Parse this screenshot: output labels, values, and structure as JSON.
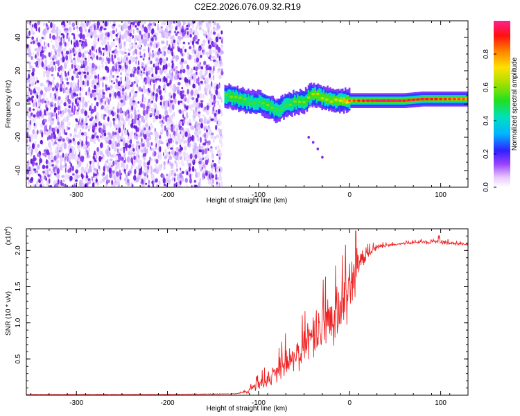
{
  "title": "C2E2.2026.076.09.32.R19",
  "colors": {
    "snr_line": "#ee2222",
    "spectrogram_noise": "#7a2be6",
    "axis": "#000000"
  },
  "chart_data": [
    {
      "type": "heatmap",
      "name": "spectrogram",
      "xlabel": "Height of straight line (km)",
      "ylabel": "Frequency (Hz)",
      "xlim": [
        -355,
        130
      ],
      "ylim": [
        -50,
        50
      ],
      "xticks": [
        -300,
        -200,
        -100,
        0,
        100
      ],
      "yticks": [
        -40,
        -20,
        0,
        20,
        40
      ],
      "colorbar": {
        "label": "Normalized spectral amplitude",
        "range": [
          0,
          1
        ],
        "ticks": [
          "0.0",
          "0.2",
          "0.4",
          "0.6",
          "0.8"
        ],
        "tick_values": [
          0,
          0.2,
          0.4,
          0.6,
          0.8
        ]
      },
      "noise_region_x": [
        -355,
        -140
      ],
      "signal_track": {
        "x": [
          -137,
          -130,
          -120,
          -110,
          -100,
          -90,
          -80,
          -70,
          -60,
          -50,
          -40,
          -30,
          -20,
          -10,
          0,
          20,
          40,
          60,
          80,
          100,
          130
        ],
        "freq": [
          5,
          4,
          3,
          1,
          1,
          -1,
          -4,
          -1,
          1,
          2,
          6,
          4,
          2,
          2,
          2,
          2,
          2,
          2,
          3,
          3,
          3
        ],
        "amplitude": [
          0.45,
          0.5,
          0.5,
          0.45,
          0.45,
          0.5,
          0.45,
          0.45,
          0.5,
          0.5,
          0.55,
          0.55,
          0.55,
          0.6,
          0.75,
          0.85,
          0.9,
          0.85,
          0.85,
          0.8,
          0.75
        ]
      },
      "secondary_track": {
        "x": [
          -45,
          -40,
          -35,
          -30
        ],
        "freq": [
          -20,
          -23,
          -27,
          -32
        ]
      }
    },
    {
      "type": "line",
      "name": "snr",
      "xlabel": "Height of straight line (km)",
      "ylabel": "SNR (10 * v/v)",
      "scale_label": "(x10",
      "scale_exponent": "4",
      "xlim": [
        -355,
        130
      ],
      "ylim": [
        0,
        2.3
      ],
      "xticks": [
        -300,
        -200,
        -100,
        0,
        100
      ],
      "yticks": [
        0.5,
        1.0,
        1.5,
        2.0
      ],
      "ytick_labels": [
        "0.5",
        "1.0",
        "1.5",
        "2.0"
      ],
      "series": [
        {
          "name": "SNR",
          "x": [
            -355,
            -200,
            -125,
            -110,
            -100,
            -90,
            -80,
            -70,
            -60,
            -50,
            -40,
            -30,
            -20,
            -10,
            0,
            10,
            20,
            30,
            40,
            60,
            80,
            90,
            100,
            110,
            130
          ],
          "values": [
            0.01,
            0.01,
            0.02,
            0.06,
            0.15,
            0.22,
            0.3,
            0.45,
            0.55,
            0.65,
            0.8,
            0.95,
            1.05,
            1.15,
            1.5,
            1.85,
            1.95,
            2.05,
            2.07,
            2.1,
            2.12,
            2.12,
            2.13,
            2.1,
            2.09
          ],
          "spread": [
            0,
            0,
            0,
            0.05,
            0.1,
            0.15,
            0.2,
            0.3,
            0.3,
            0.35,
            0.4,
            0.45,
            0.5,
            0.5,
            0.55,
            0.3,
            0.1,
            0.05,
            0.03,
            0.02,
            0.03,
            0.05,
            0.06,
            0.03,
            0.02
          ]
        }
      ]
    }
  ]
}
